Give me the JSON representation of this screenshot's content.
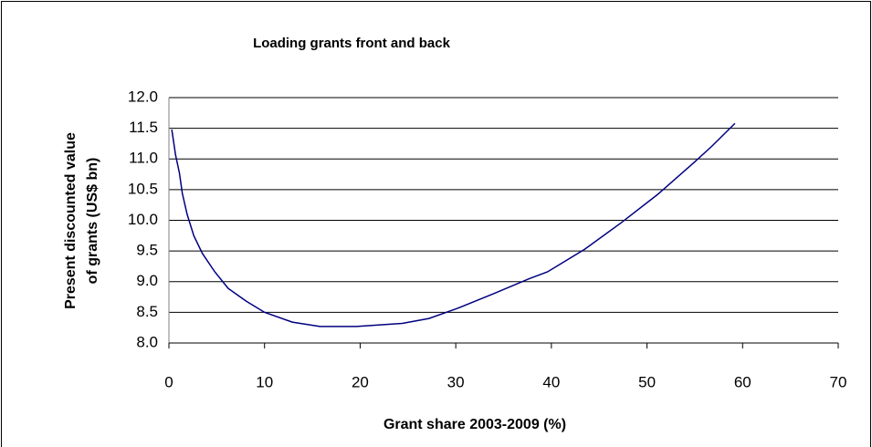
{
  "chart_data": {
    "type": "line",
    "title": "Loading grants front and back",
    "x_label": "Grant share 2003-2009 (%)",
    "y_label": [
      "Present discounted value",
      "of grants  (US$ bn)"
    ],
    "x": [
      0.3,
      0.7,
      1.1,
      1.4,
      1.9,
      2.6,
      3.5,
      4.8,
      6.2,
      8.1,
      10,
      12.9,
      15.8,
      19.6,
      24.4,
      27.2,
      30.1,
      33.9,
      37.7,
      39.6,
      43.5,
      47.3,
      51.1,
      54.9,
      56.8,
      59.2
    ],
    "series": [
      {
        "color": "#000080",
        "values": [
          11.48,
          11.06,
          10.77,
          10.44,
          10.1,
          9.75,
          9.46,
          9.16,
          8.89,
          8.68,
          8.5,
          8.34,
          8.27,
          8.27,
          8.32,
          8.4,
          8.56,
          8.8,
          9.05,
          9.16,
          9.53,
          9.96,
          10.42,
          10.94,
          11.21,
          11.58
        ]
      }
    ],
    "xlim": [
      0,
      70
    ],
    "xticks": [
      0,
      10,
      20,
      30,
      40,
      50,
      60,
      70
    ],
    "ylim": [
      8,
      12
    ],
    "yticks": [
      {
        "value": 8,
        "label": "8.0"
      },
      8.5,
      {
        "value": 9,
        "label": "9.0"
      },
      9.5,
      {
        "value": 10,
        "label": "10.0"
      },
      10.5,
      {
        "value": 11,
        "label": "11.0"
      },
      11.5,
      {
        "value": 12,
        "label": "12.0"
      }
    ],
    "grid": true
  }
}
